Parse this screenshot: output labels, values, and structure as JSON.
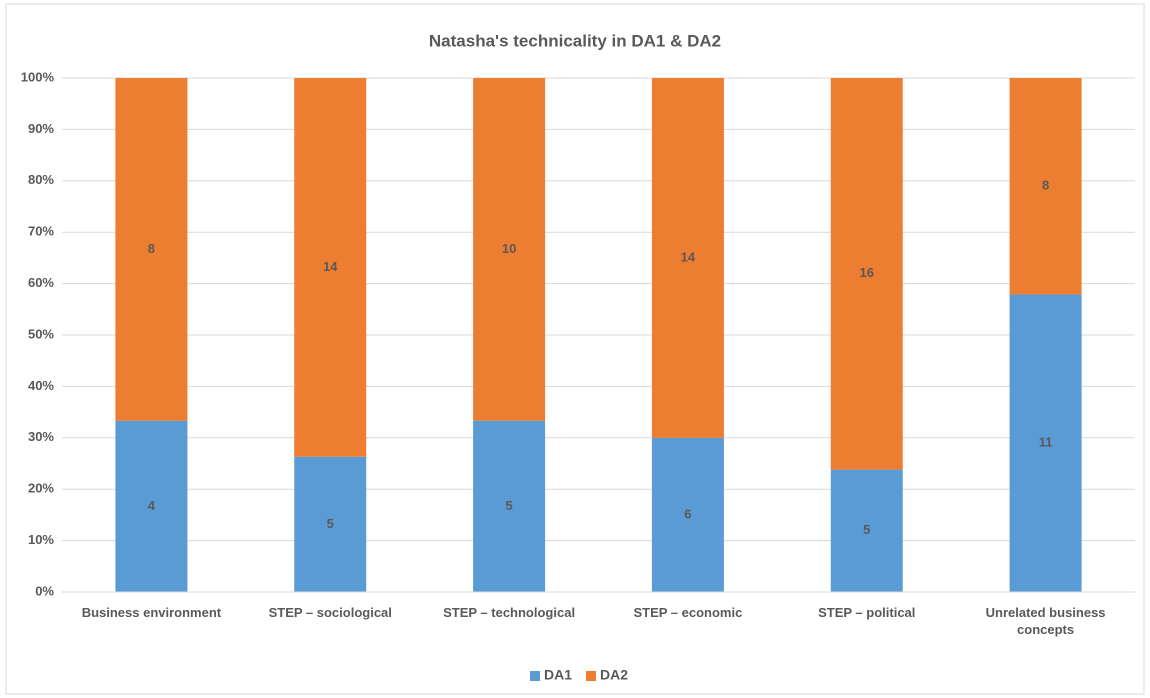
{
  "chart_data": {
    "type": "bar",
    "stacked": "percent",
    "title": "Natasha's technicality in DA1 & DA2",
    "categories": [
      "Business environment",
      "STEP – sociological",
      "STEP – technological",
      "STEP – economic",
      "STEP – political",
      "Unrelated business concepts"
    ],
    "series": [
      {
        "name": "DA1",
        "color": "#5b9bd5",
        "values": [
          4,
          5,
          5,
          6,
          5,
          11
        ]
      },
      {
        "name": "DA2",
        "color": "#ed7d31",
        "values": [
          8,
          14,
          10,
          14,
          16,
          8
        ]
      }
    ],
    "ylim": [
      0,
      100
    ],
    "yticks": [
      {
        "value": 0,
        "label": "0%"
      },
      {
        "value": 10,
        "label": "10%"
      },
      {
        "value": 20,
        "label": "20%"
      },
      {
        "value": 30,
        "label": "30%"
      },
      {
        "value": 40,
        "label": "40%"
      },
      {
        "value": 50,
        "label": "50%"
      },
      {
        "value": 60,
        "label": "60%"
      },
      {
        "value": 70,
        "label": "70%"
      },
      {
        "value": 80,
        "label": "80%"
      },
      {
        "value": 90,
        "label": "90%"
      },
      {
        "value": 100,
        "label": "100%"
      }
    ],
    "grid": true,
    "legend": "bottom"
  }
}
